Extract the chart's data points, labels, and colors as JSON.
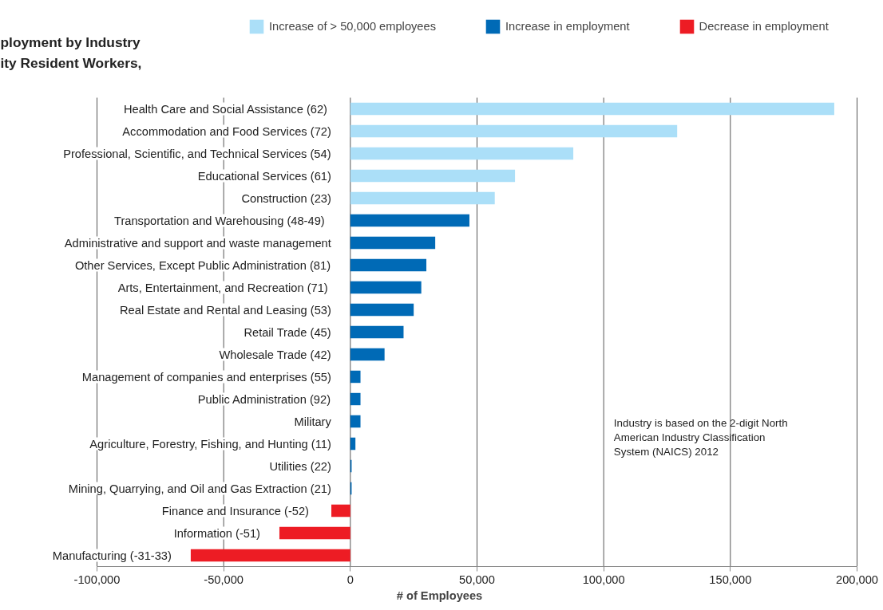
{
  "chart_data": {
    "type": "bar",
    "orientation": "horizontal",
    "title": "ployment by Industry\nity Resident Workers,",
    "xlabel": "# of Employees",
    "categories": [
      "Health Care  and Social Assistance (62)",
      "Accommodation and Food Services (72)",
      "Professional, Scientific, and Technical Services (54)",
      "Educational Services (61)",
      "Construction (23)",
      "Transportation and Warehousing   (48-49)",
      "Administrative and support and waste management",
      "Other Services, Except Public Administration (81)",
      "Arts, Entertainment, and Recreation  (71)",
      "Real Estate and Rental and Leasing (53)",
      "Retail Trade (45)",
      "Wholesale Trade (42)",
      "Management of companies and enterprises (55)",
      "Public Administration (92)",
      "Military",
      "Agriculture, Forestry, Fishing, and Hunting (11)",
      "Utilities (22)",
      "Mining, Quarrying, and Oil and Gas Extraction (21)",
      "Finance and Insurance  (-52)",
      "Information (-51)",
      "Manufacturing (-31-33)"
    ],
    "series": [
      {
        "name": "Increase of > 50,000 employees",
        "color": "#abdff8",
        "values": [
          191000,
          129000,
          88000,
          65000,
          57000,
          null,
          null,
          null,
          null,
          null,
          null,
          null,
          null,
          null,
          null,
          null,
          null,
          null,
          null,
          null,
          null
        ]
      },
      {
        "name": "Increase in employment",
        "color": "#006ab6",
        "values": [
          null,
          null,
          null,
          null,
          null,
          47000,
          33500,
          30000,
          28000,
          25000,
          21000,
          13500,
          4000,
          4000,
          4000,
          2000,
          500,
          500,
          null,
          null,
          null
        ]
      },
      {
        "name": "Decrease in employment",
        "color": "#ed1c24",
        "values": [
          null,
          null,
          null,
          null,
          null,
          null,
          null,
          null,
          null,
          null,
          null,
          null,
          null,
          null,
          null,
          null,
          null,
          null,
          -7500,
          -28000,
          -63000
        ]
      }
    ],
    "xlim": [
      -100000,
      200000
    ],
    "xticks": [
      {
        "value": -100000,
        "label": "-100,000"
      },
      {
        "value": -50000,
        "label": "-50,000"
      },
      {
        "value": 0,
        "label": "0"
      },
      {
        "value": 50000,
        "label": "50,000"
      },
      {
        "value": 100000,
        "label": "100,000"
      },
      {
        "value": 150000,
        "label": "150,000"
      },
      {
        "value": 200000,
        "label": "200,000"
      }
    ],
    "grid": "x",
    "legend": "top",
    "annotations": [
      "Industry is based on the 2-digit North\nAmerican Industry Classification\nSystem (NAICS) 2012"
    ]
  }
}
